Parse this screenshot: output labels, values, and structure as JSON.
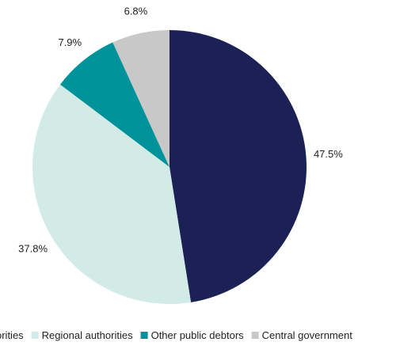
{
  "chart_data": {
    "type": "pie",
    "categories": [
      "Local authorities",
      "Regional authorities",
      "Other public debtors",
      "Central government"
    ],
    "values": [
      47.5,
      37.8,
      7.9,
      6.8
    ],
    "value_labels": [
      "47.5%",
      "37.8%",
      "7.9%",
      "6.8%"
    ],
    "colors": [
      "#1b2155",
      "#d3ebe6",
      "#00929a",
      "#c8c8c8"
    ],
    "legend_position": "bottom",
    "start_angle": "12 o'clock",
    "direction": "clockwise"
  }
}
